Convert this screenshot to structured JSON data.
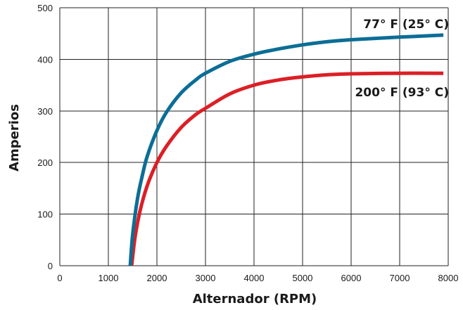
{
  "chart_data": {
    "type": "line",
    "xlabel": "Alternador (RPM)",
    "ylabel": "Amperios",
    "xlim": [
      0,
      8000
    ],
    "ylim": [
      0,
      500
    ],
    "x_ticks": [
      0,
      1000,
      2000,
      3000,
      4000,
      5000,
      6000,
      7000,
      8000
    ],
    "y_ticks": [
      0,
      100,
      200,
      300,
      400,
      500
    ],
    "grid": true,
    "series": [
      {
        "name": "77° F (25° C)",
        "color": "#0b6e96",
        "x": [
          1450,
          1500,
          1600,
          1700,
          1800,
          2000,
          2200,
          2500,
          2800,
          3000,
          3500,
          4000,
          4500,
          5000,
          5500,
          6000,
          7000,
          7900
        ],
        "y": [
          0,
          60,
          130,
          175,
          212,
          262,
          298,
          335,
          360,
          373,
          396,
          410,
          420,
          428,
          434,
          438,
          443,
          447
        ]
      },
      {
        "name": "200° F (93° C)",
        "color": "#dc1f26",
        "x": [
          1480,
          1550,
          1650,
          1800,
          2000,
          2200,
          2500,
          2800,
          3000,
          3500,
          4000,
          4500,
          5000,
          5500,
          6000,
          7000,
          7900
        ],
        "y": [
          0,
          55,
          105,
          155,
          200,
          232,
          268,
          293,
          305,
          333,
          350,
          360,
          366,
          370,
          372,
          373,
          373
        ]
      }
    ]
  }
}
